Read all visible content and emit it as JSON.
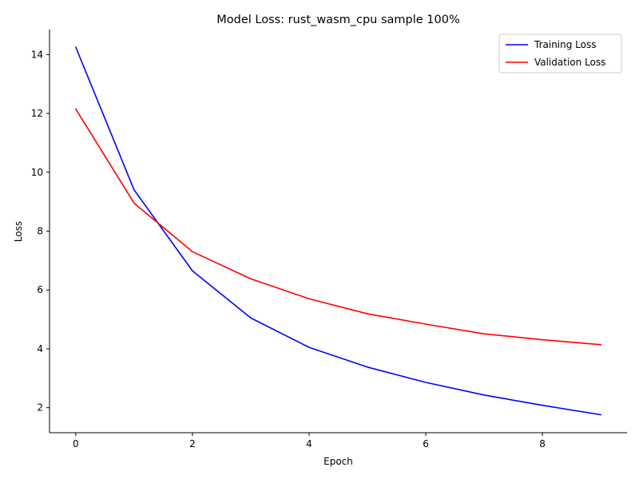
{
  "chart_data": {
    "type": "line",
    "title": "Model Loss: rust_wasm_cpu sample 100%",
    "xlabel": "Epoch",
    "ylabel": "Loss",
    "x": [
      0,
      1,
      2,
      3,
      4,
      5,
      6,
      7,
      8,
      9
    ],
    "xlim": [
      -0.45,
      9.45
    ],
    "ylim": [
      1.15,
      14.85
    ],
    "xticks": [
      0,
      2,
      4,
      6,
      8
    ],
    "yticks": [
      2,
      4,
      6,
      8,
      10,
      12,
      14
    ],
    "grid": false,
    "legend_position": "top-right",
    "series": [
      {
        "name": "Training Loss",
        "color": "#0000ff",
        "values": [
          14.25,
          9.4,
          6.65,
          5.05,
          4.05,
          3.38,
          2.86,
          2.43,
          2.08,
          1.76
        ]
      },
      {
        "name": "Validation Loss",
        "color": "#ff0000",
        "values": [
          12.15,
          8.95,
          7.3,
          6.38,
          5.7,
          5.19,
          4.84,
          4.51,
          4.31,
          4.14
        ]
      }
    ]
  }
}
